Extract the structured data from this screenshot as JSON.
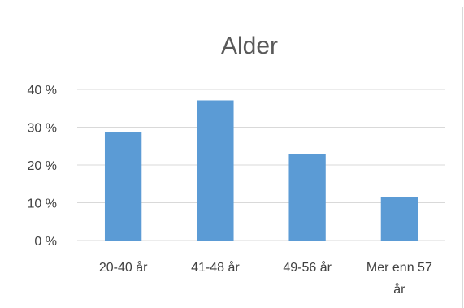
{
  "chart_data": {
    "type": "bar",
    "title": "Alder",
    "categories": [
      [
        "20-40 år"
      ],
      [
        "41-48 år"
      ],
      [
        "49-56 år"
      ],
      [
        "Mer enn 57",
        "år"
      ]
    ],
    "values": [
      28.6,
      37.1,
      22.9,
      11.4
    ],
    "ylim": [
      0,
      40
    ],
    "yticks": [
      0,
      10,
      20,
      30,
      40
    ],
    "ytick_suffix": " %",
    "ytick_labels": [
      "0 %",
      "10 %",
      "20 %",
      "30 %",
      "40 %"
    ],
    "bar_color": "#5b9bd5",
    "grid": true,
    "legend": "none"
  }
}
